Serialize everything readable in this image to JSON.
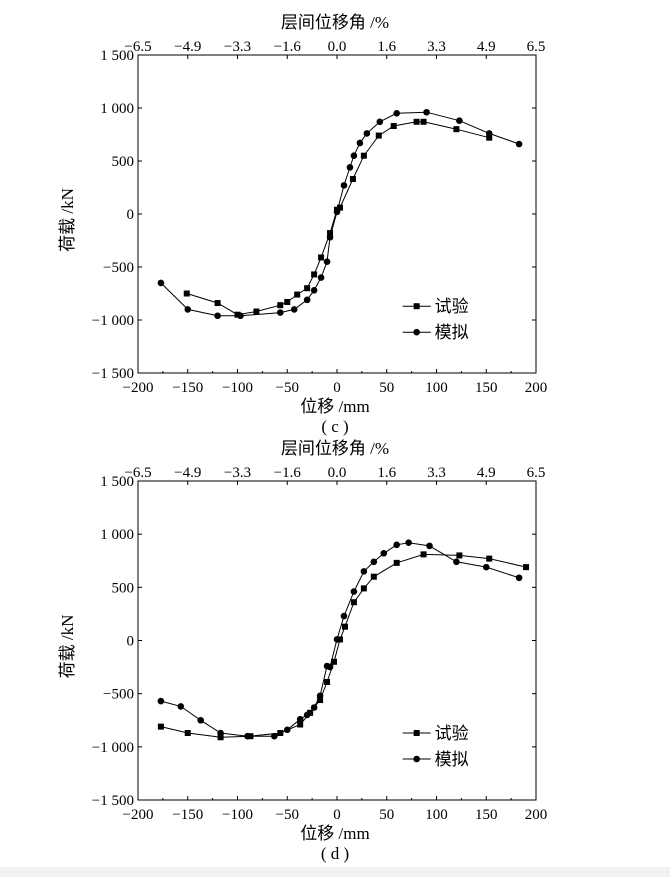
{
  "chart_data": [
    {
      "type": "line",
      "caption": "( c )",
      "xlabel": "位移 /mm",
      "ylabel": "荷载 /kN",
      "top_xlabel": "层间位移角 /%",
      "xlim": [
        -200,
        200
      ],
      "ylim": [
        -1500,
        1500
      ],
      "x_ticks": [
        "−200",
        "−150",
        "−100",
        "−50",
        "0",
        "50",
        "100",
        "150",
        "200"
      ],
      "y_ticks": [
        "−1 500",
        "−1 000",
        "−500",
        "0",
        "500",
        "1 000",
        "1 500"
      ],
      "top_ticks": [
        "−6.5",
        "−4.9",
        "−3.3",
        "−1.6",
        "0.0",
        "1.6",
        "3.3",
        "4.9",
        "6.5"
      ],
      "legend_position": "lower-right",
      "series": [
        {
          "name": "试验",
          "marker": "square",
          "x": [
            -151,
            -120,
            -100,
            -81,
            -57,
            -50,
            -40,
            -30,
            -23,
            -16,
            -7,
            0,
            3,
            16,
            27,
            42,
            57,
            80,
            87,
            120,
            153
          ],
          "y": [
            -750,
            -840,
            -950,
            -920,
            -860,
            -830,
            -760,
            -700,
            -570,
            -410,
            -180,
            40,
            60,
            330,
            550,
            740,
            830,
            870,
            870,
            800,
            720
          ]
        },
        {
          "name": "模拟",
          "marker": "circle",
          "x": [
            -177,
            -150,
            -120,
            -97,
            -57,
            -43,
            -30,
            -23,
            -16,
            -10,
            -7,
            0,
            7,
            13,
            17,
            23,
            30,
            43,
            60,
            90,
            123,
            153,
            183
          ],
          "y": [
            -650,
            -900,
            -960,
            -960,
            -930,
            -900,
            -810,
            -720,
            -600,
            -450,
            -220,
            20,
            270,
            440,
            550,
            670,
            760,
            870,
            950,
            960,
            880,
            760,
            660
          ]
        }
      ]
    },
    {
      "type": "line",
      "caption": "( d )",
      "xlabel": "位移 /mm",
      "ylabel": "荷载 /kN",
      "top_xlabel": "层间位移角 /%",
      "xlim": [
        -200,
        200
      ],
      "ylim": [
        -1500,
        1500
      ],
      "x_ticks": [
        "−200",
        "−150",
        "−100",
        "−50",
        "0",
        "50",
        "100",
        "150",
        "200"
      ],
      "y_ticks": [
        "−1 500",
        "−1 000",
        "−500",
        "0",
        "500",
        "1 000",
        "1 500"
      ],
      "top_ticks": [
        "−6.5",
        "−4.9",
        "−3.3",
        "−1.6",
        "0.0",
        "1.6",
        "3.3",
        "4.9",
        "6.5"
      ],
      "legend_position": "lower-right",
      "series": [
        {
          "name": "试验",
          "marker": "square",
          "x": [
            -177,
            -150,
            -117,
            -87,
            -57,
            -37,
            -27,
            -17,
            -10,
            -3,
            3,
            8,
            17,
            27,
            37,
            60,
            87,
            123,
            153,
            190
          ],
          "y": [
            -810,
            -870,
            -910,
            -900,
            -870,
            -790,
            -680,
            -560,
            -390,
            -200,
            10,
            130,
            360,
            490,
            600,
            730,
            810,
            800,
            770,
            690
          ]
        },
        {
          "name": "模拟",
          "marker": "circle",
          "x": [
            -177,
            -157,
            -137,
            -117,
            -90,
            -63,
            -50,
            -37,
            -30,
            -23,
            -17,
            -10,
            -7,
            0,
            7,
            17,
            27,
            37,
            47,
            60,
            72,
            93,
            120,
            150,
            183
          ],
          "y": [
            -570,
            -620,
            -750,
            -870,
            -900,
            -900,
            -840,
            -740,
            -700,
            -630,
            -520,
            -240,
            -250,
            10,
            230,
            460,
            650,
            740,
            820,
            900,
            920,
            890,
            740,
            690,
            590
          ]
        }
      ]
    }
  ]
}
